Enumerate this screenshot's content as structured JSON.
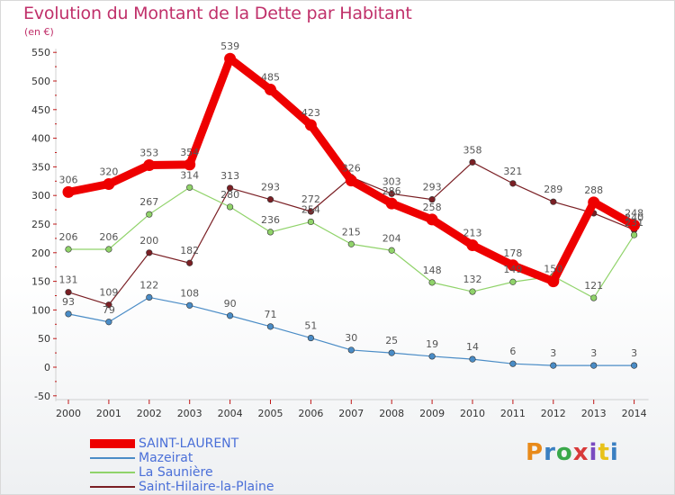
{
  "title": "Evolution du Montant de la Dette par Habitant",
  "subtitle": "(en €)",
  "logo": {
    "text": "Proxiti",
    "colors": [
      "#e88a1a",
      "#3a7fc1",
      "#3aa84a",
      "#d83a3a",
      "#7a4ac0",
      "#e8c21a",
      "#3a7fc1"
    ]
  },
  "chart_data": {
    "type": "line",
    "x": [
      "2000",
      "2001",
      "2002",
      "2003",
      "2004",
      "2005",
      "2006",
      "2007",
      "2008",
      "2009",
      "2010",
      "2011",
      "2012",
      "2013",
      "2014"
    ],
    "ylim": [
      -50,
      550
    ],
    "yticks": [
      -50,
      0,
      50,
      100,
      150,
      200,
      250,
      300,
      350,
      400,
      450,
      500,
      550
    ],
    "ytick_labels": [
      "-50",
      "0",
      "50",
      "100",
      "150",
      "200",
      "250",
      "300",
      "350",
      "400",
      "450",
      "500",
      "550"
    ],
    "grid": false,
    "legend_position": "bottom-left",
    "series": [
      {
        "name": "Saint-Hilaire-la-Plaine",
        "color": "#7a1f24",
        "values": [
          131,
          109,
          200,
          182,
          313,
          293,
          272,
          332,
          303,
          293,
          358,
          321,
          289,
          269,
          240
        ],
        "labels": [
          "131",
          "109",
          "200",
          "182",
          "313",
          "293",
          "272",
          "",
          "303",
          "293",
          "358",
          "321",
          "289",
          "",
          "240"
        ]
      },
      {
        "name": "La Saunière",
        "color": "#90d36a",
        "values": [
          206,
          206,
          267,
          314,
          280,
          236,
          254,
          215,
          204,
          148,
          132,
          149,
          159,
          121,
          231
        ],
        "labels": [
          "206",
          "206",
          "267",
          "314",
          "280",
          "236",
          "254",
          "215",
          "204",
          "148",
          "132",
          "149",
          "",
          "121",
          "231"
        ]
      },
      {
        "name": "Mazeirat",
        "color": "#4a8cc6",
        "values": [
          93,
          79,
          122,
          108,
          90,
          71,
          51,
          30,
          25,
          19,
          14,
          6,
          3,
          3,
          3
        ],
        "labels": [
          "93",
          "79",
          "122",
          "108",
          "90",
          "71",
          "51",
          "30",
          "25",
          "19",
          "14",
          "6",
          "3",
          "3",
          "3"
        ]
      },
      {
        "name": "SAINT-LAURENT",
        "color": "#ee0000",
        "values": [
          306,
          320,
          353,
          354,
          539,
          485,
          423,
          326,
          286,
          258,
          213,
          178,
          150,
          288,
          248
        ],
        "labels": [
          "306",
          "320",
          "353",
          "354",
          "539",
          "485",
          "423",
          "326",
          "286",
          "258",
          "213",
          "178",
          "150",
          "288",
          "248"
        ]
      }
    ]
  }
}
